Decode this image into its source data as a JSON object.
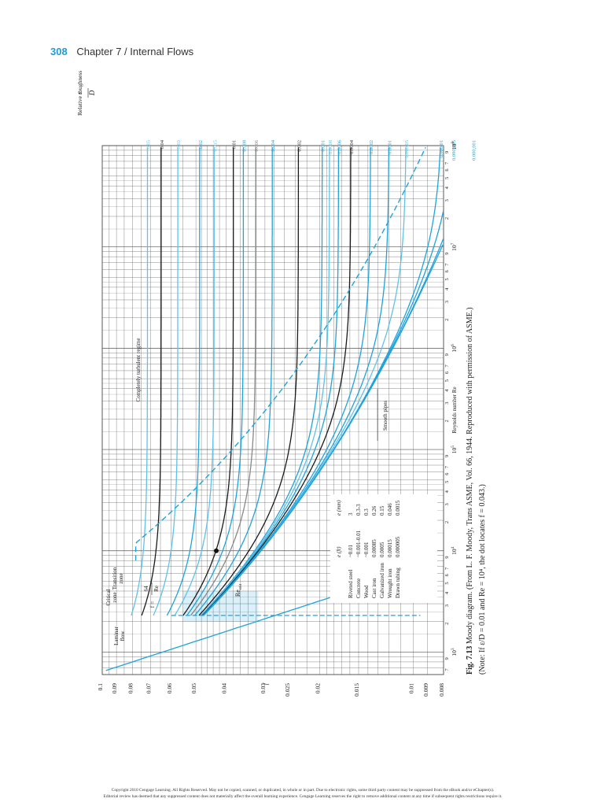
{
  "header": {
    "page_number": "308",
    "chapter": "Chapter 7 / Internal Flows"
  },
  "figure": {
    "caption_label": "Fig. 7.13",
    "caption_line1": " Moody diagram. (From L. F. Moody, Trans ASME, Vol. 66, 1944. Reproduced with permission of ASME.)",
    "caption_line2": "(Note: If ε/D = 0.01 and Re = 10⁴, the dot locates f = 0.043.)"
  },
  "chart_data": {
    "type": "line",
    "title": "",
    "xlabel": "Reynolds number Re",
    "ylabel": "f",
    "right_axis_label_eps": "ε",
    "right_axis_label_D": "D",
    "right_axis_label": "Relative roughness",
    "xscale": "log",
    "yscale": "log",
    "xlim": [
      600,
      100000000
    ],
    "ylim": [
      0.008,
      0.1
    ],
    "x_major_ticks": [
      {
        "v": 1000,
        "base": "10",
        "exp": "3"
      },
      {
        "v": 10000,
        "base": "10",
        "exp": "4"
      },
      {
        "v": 100000,
        "base": "10",
        "exp": "5"
      },
      {
        "v": 1000000,
        "base": "10",
        "exp": "6"
      },
      {
        "v": 10000000,
        "base": "10",
        "exp": "7"
      },
      {
        "v": 100000000,
        "base": "10",
        "exp": "8"
      }
    ],
    "x_minor_tick_labels": [
      "2",
      "3",
      "4",
      "5",
      "6",
      "7",
      "9"
    ],
    "x_leading_tick_labels": [
      "7",
      "9"
    ],
    "y_ticks": [
      {
        "v": 0.1,
        "label": "0.1"
      },
      {
        "v": 0.09,
        "label": "0.09"
      },
      {
        "v": 0.08,
        "label": "0.08"
      },
      {
        "v": 0.07,
        "label": "0.07"
      },
      {
        "v": 0.06,
        "label": "0.06"
      },
      {
        "v": 0.05,
        "label": "0.05"
      },
      {
        "v": 0.04,
        "label": "0.04"
      },
      {
        "v": 0.03,
        "label": "0.03"
      },
      {
        "v": 0.025,
        "label": "0.025"
      },
      {
        "v": 0.02,
        "label": "0.02"
      },
      {
        "v": 0.015,
        "label": "0.015"
      },
      {
        "v": 0.01,
        "label": "0.01"
      },
      {
        "v": 0.009,
        "label": "0.009"
      },
      {
        "v": 0.008,
        "label": "0.008"
      }
    ],
    "grid": true,
    "series": [
      {
        "eps_D": 0.05,
        "label": "0.05",
        "color": "#5fc2e8"
      },
      {
        "eps_D": 0.04,
        "label": "0.04",
        "color": "#1a1a1a"
      },
      {
        "eps_D": 0.03,
        "label": "0.03",
        "color": "#5fc2e8"
      },
      {
        "eps_D": 0.02,
        "label": "0.02",
        "color": "#1fa3dc"
      },
      {
        "eps_D": 0.015,
        "label": "0.015",
        "color": "#5fc2e8"
      },
      {
        "eps_D": 0.01,
        "label": "0.01",
        "color": "#1a1a1a"
      },
      {
        "eps_D": 0.008,
        "label": "0.008",
        "color": "#1fa3dc"
      },
      {
        "eps_D": 0.006,
        "label": "0.006",
        "color": "#888888"
      },
      {
        "eps_D": 0.004,
        "label": "0.004",
        "color": "#1fa3dc"
      },
      {
        "eps_D": 0.002,
        "label": "0.002",
        "color": "#1a1a1a"
      },
      {
        "eps_D": 0.001,
        "label": "0.001",
        "color": "#1fa3dc"
      },
      {
        "eps_D": 0.0008,
        "label": "0.0008",
        "color": "#5fc2e8"
      },
      {
        "eps_D": 0.0006,
        "label": "0.0006",
        "color": "#1fa3dc"
      },
      {
        "eps_D": 0.0004,
        "label": "0.0004",
        "color": "#1a1a1a"
      },
      {
        "eps_D": 0.0002,
        "label": "0.0002",
        "color": "#1fa3dc"
      },
      {
        "eps_D": 0.0001,
        "label": "0.0001",
        "color": "#1fa3dc"
      },
      {
        "eps_D": 5e-05,
        "label": "0.000,05",
        "color": "#5fc2e8"
      },
      {
        "eps_D": 1e-05,
        "label": "0.000,01",
        "color": "#1fa3dc"
      },
      {
        "eps_D": 5e-06,
        "label": "0.000,005",
        "color": "#1fa3dc"
      },
      {
        "eps_D": 1e-06,
        "label": "0.000,001",
        "color": "#1fa3dc"
      },
      {
        "eps_D": 0,
        "label": "",
        "color": "#1fa3dc"
      }
    ],
    "dot": {
      "x": 10000,
      "y": 0.043
    },
    "annotations": {
      "laminar_line1": "Laminar",
      "laminar_line2": "flow",
      "laminar_formula_lhs": "f =",
      "laminar_formula_num": "64",
      "laminar_formula_den": "Re",
      "critical_line1": "Critical",
      "critical_line2": "zone",
      "transition_line1": "Transition",
      "transition_line2": "zone",
      "turbulent": "Completely turbulent regime",
      "smooth": "Smooth pipes",
      "recrit_main": "Re",
      "recrit_sub": "crit"
    },
    "roughness_table": {
      "headers": [
        "",
        "e (ft)",
        "e (mm)"
      ],
      "rows": [
        [
          "Riveted steel",
          "~0.01",
          "3"
        ],
        [
          "Concrete",
          "~0.001-0.01",
          "0.3-3"
        ],
        [
          "Wood",
          "~0.001",
          "0.3"
        ],
        [
          "Cast iron",
          "0.00085",
          "0.26"
        ],
        [
          "Galvanized iron",
          "0.0005",
          "0.15"
        ],
        [
          "Wrought iron",
          "0.00015",
          "0.046"
        ],
        [
          "Drawn tubing",
          "0.000005",
          "0.0015"
        ]
      ]
    }
  },
  "footer": {
    "line1": "Copyright 2010 Cengage Learning. All Rights Reserved. May not be copied, scanned, or duplicated, in whole or in part. Due to electronic rights, some third party content may be suppressed from the eBook and/or eChapter(s).",
    "line2": "Editorial review has deemed that any suppressed content does not materially affect the overall learning experience. Cengage Learning reserves the right to remove additional content at any time if subsequent rights restrictions require it."
  },
  "colors": {
    "accent": "#1e9bd6",
    "grid": "#555555"
  }
}
